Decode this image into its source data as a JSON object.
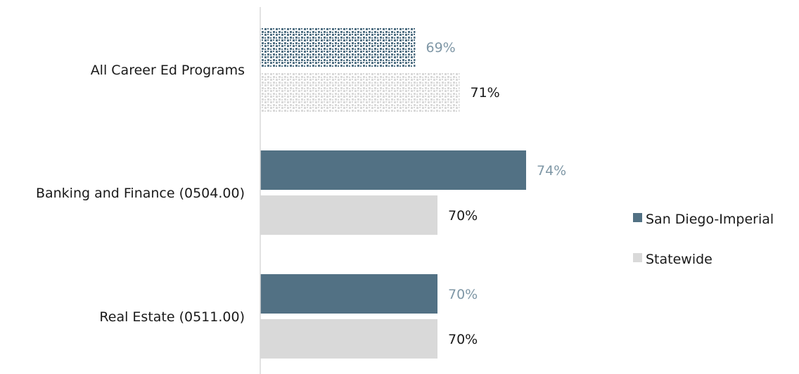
{
  "chart_data": {
    "type": "bar",
    "orientation": "horizontal",
    "categories": [
      "All Career Ed Programs",
      "Banking and Finance (0504.00)",
      "Real Estate (0511.00)"
    ],
    "series": [
      {
        "name": "San Diego-Imperial",
        "values": [
          69,
          74,
          70
        ],
        "labels": [
          "69%",
          "74%",
          "70%"
        ],
        "color": "#527184",
        "label_color": "#7f97a6"
      },
      {
        "name": "Statewide",
        "values": [
          71,
          70,
          70
        ],
        "labels": [
          "71%",
          "70%",
          "70%"
        ],
        "color": "#d9d9d9",
        "label_color": "#1a1a1a"
      }
    ],
    "xlim": [
      62,
      81
    ],
    "grid": false,
    "legend_position": "right",
    "first_category_pattern": "dotted"
  }
}
